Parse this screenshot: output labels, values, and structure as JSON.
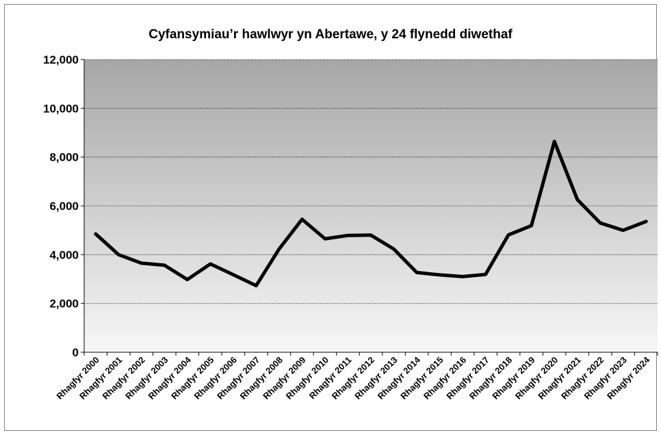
{
  "chart_data": {
    "type": "line",
    "title": "Cyfansymiau’r hawlwyr yn Abertawe, y 24 flynedd diwethaf",
    "xlabel": "",
    "ylabel": "",
    "categories": [
      "Rhagfyr 2000",
      "Rhagfyr 2001",
      "Rhagfyr 2002",
      "Rhagfyr 2003",
      "Rhagfyr 2004",
      "Rhagfyr 2005",
      "Rhagfyr 2006",
      "Rhagfyr 2007",
      "Rhagfyr 2008",
      "Rhagfyr 2009",
      "Rhagfyr 2010",
      "Rhagfyr 2011",
      "Rhagfyr 2012",
      "Rhagfyr 2013",
      "Rhagfyr 2014",
      "Rhagfyr 2015",
      "Rhagfyr 2016",
      "Rhagfyr 2017",
      "Rhagfyr 2018",
      "Rhagfyr 2019",
      "Rhagfyr 2020",
      "Rhagfyr 2021",
      "Rhagfyr 2022",
      "Rhagfyr 2023",
      "Rhagfyr 2024"
    ],
    "series": [
      {
        "values": [
          4850,
          4000,
          3650,
          3570,
          2980,
          3620,
          3180,
          2730,
          4230,
          5450,
          4650,
          4790,
          4800,
          4230,
          3270,
          3170,
          3100,
          3190,
          4810,
          5190,
          8640,
          6260,
          5300,
          5000,
          5360
        ]
      }
    ],
    "ylim": [
      0,
      12000
    ],
    "yticks": [
      0,
      2000,
      4000,
      6000,
      8000,
      10000,
      12000
    ],
    "ytick_labels": [
      "0",
      "2,000",
      "4,000",
      "6,000",
      "8,000",
      "10,000",
      "12,000"
    ],
    "grid": true,
    "legend": "none",
    "colors": {
      "line": "#000000",
      "plot_bg_top": "#a6a6a6",
      "plot_bg_bottom": "#f7f7f7",
      "grid": "#000000",
      "border": "#7f7f7f"
    }
  }
}
